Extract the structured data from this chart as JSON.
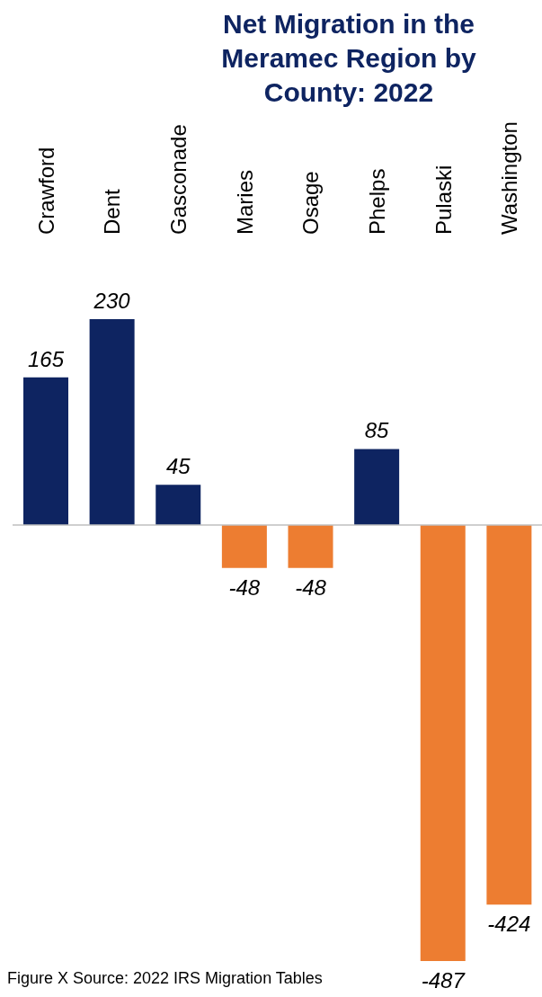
{
  "chart_data": {
    "type": "bar",
    "title": "Net Migration in the Meramec Region by County: 2022",
    "categories": [
      "Crawford",
      "Dent",
      "Gasconade",
      "Maries",
      "Osage",
      "Phelps",
      "Pulaski",
      "Washington"
    ],
    "values": [
      165,
      230,
      45,
      -48,
      -48,
      85,
      -487,
      -424
    ],
    "colors": [
      "#0e2461",
      "#0e2461",
      "#0e2461",
      "#ed7d31",
      "#ed7d31",
      "#0e2461",
      "#ed7d31",
      "#ed7d31"
    ],
    "data_labels": true,
    "annotations": [
      "Figure X Source: 2022 IRS Migration Tables"
    ]
  }
}
